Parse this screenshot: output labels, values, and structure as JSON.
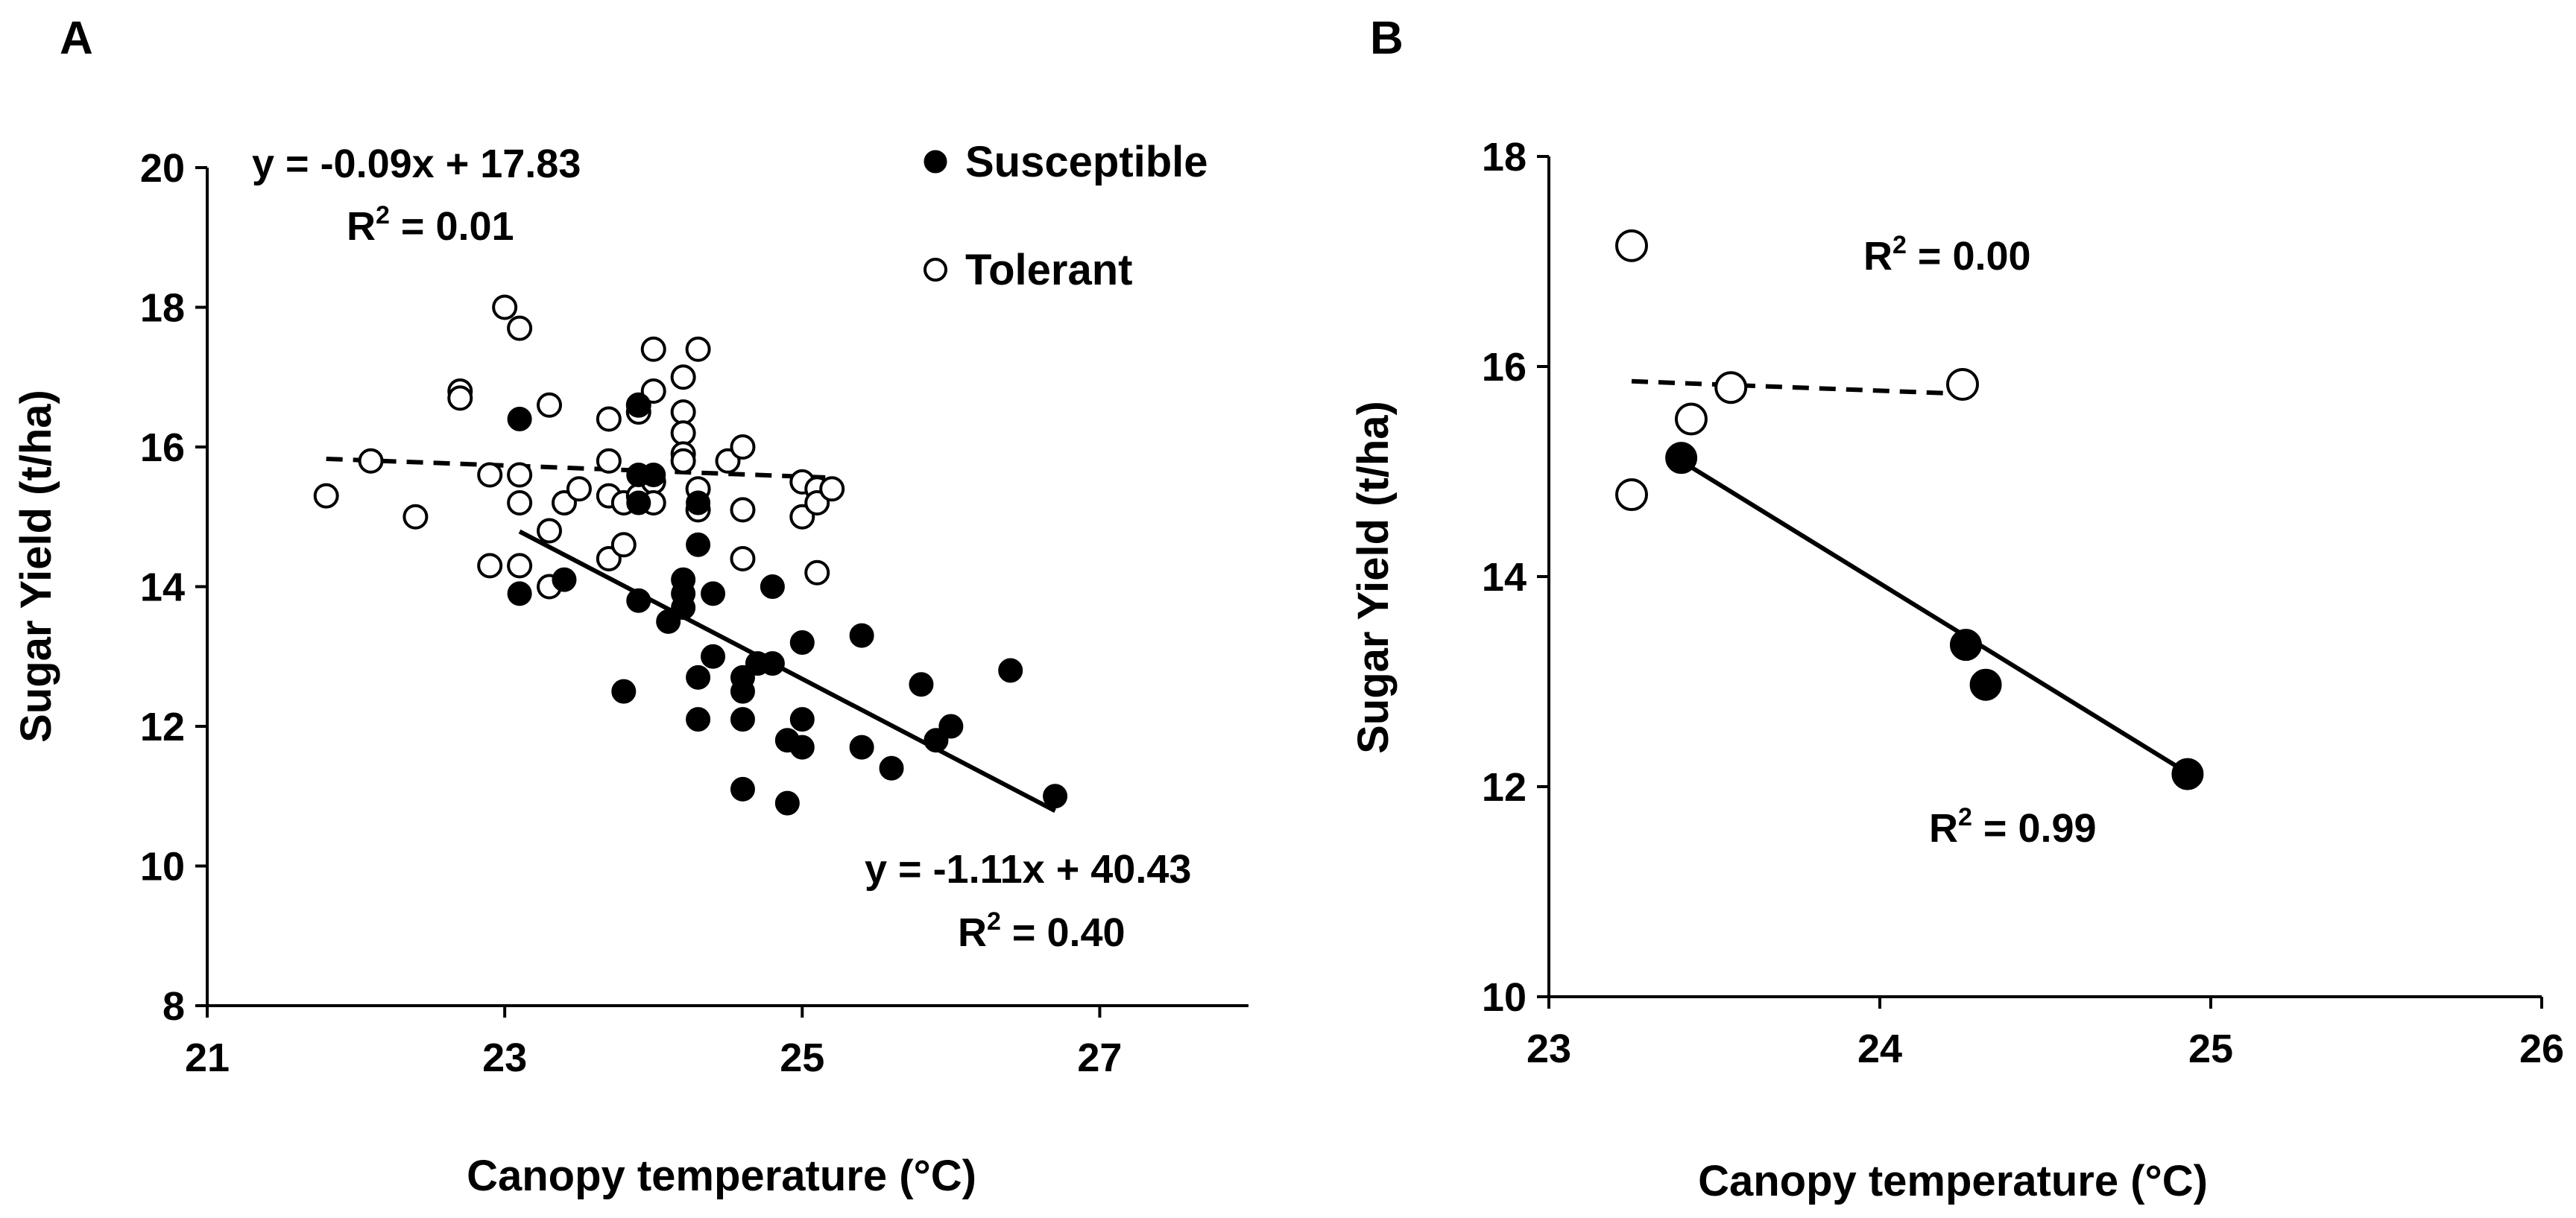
{
  "chart_data": [
    {
      "panel": "A",
      "type": "scatter",
      "xlabel": "Canopy temperature (°C)",
      "ylabel": "Sugar Yield (t/ha)",
      "xlim": [
        21,
        28
      ],
      "ylim": [
        8,
        20
      ],
      "xticks": [
        21,
        23,
        25,
        27
      ],
      "yticks": [
        8,
        10,
        12,
        14,
        16,
        18,
        20
      ],
      "legend": {
        "position": "top-right",
        "entries": [
          "Susceptible",
          "Tolerant"
        ]
      },
      "series": [
        {
          "name": "Tolerant",
          "marker": "open-circle",
          "points": [
            [
              21.8,
              15.3
            ],
            [
              22.1,
              15.8
            ],
            [
              22.4,
              15.0
            ],
            [
              22.7,
              16.8
            ],
            [
              22.7,
              16.7
            ],
            [
              22.9,
              15.6
            ],
            [
              22.9,
              14.3
            ],
            [
              23.0,
              18.0
            ],
            [
              23.1,
              17.7
            ],
            [
              23.1,
              15.6
            ],
            [
              23.1,
              15.2
            ],
            [
              23.1,
              14.3
            ],
            [
              23.3,
              16.6
            ],
            [
              23.3,
              14.8
            ],
            [
              23.3,
              14.0
            ],
            [
              23.4,
              15.2
            ],
            [
              23.5,
              15.4
            ],
            [
              23.7,
              16.4
            ],
            [
              23.7,
              15.8
            ],
            [
              23.7,
              15.3
            ],
            [
              23.7,
              14.4
            ],
            [
              23.8,
              15.2
            ],
            [
              23.8,
              14.6
            ],
            [
              23.9,
              16.5
            ],
            [
              23.9,
              16.6
            ],
            [
              23.9,
              15.3
            ],
            [
              24.0,
              17.4
            ],
            [
              24.0,
              16.8
            ],
            [
              24.0,
              15.5
            ],
            [
              24.0,
              15.2
            ],
            [
              24.2,
              17.0
            ],
            [
              24.2,
              16.5
            ],
            [
              24.2,
              16.2
            ],
            [
              24.2,
              15.9
            ],
            [
              24.2,
              15.8
            ],
            [
              24.3,
              17.4
            ],
            [
              24.3,
              15.4
            ],
            [
              24.3,
              15.1
            ],
            [
              24.5,
              15.8
            ],
            [
              24.6,
              16.0
            ],
            [
              24.6,
              15.1
            ],
            [
              24.6,
              14.4
            ],
            [
              25.0,
              15.5
            ],
            [
              25.0,
              15.0
            ],
            [
              25.1,
              15.4
            ],
            [
              25.1,
              15.2
            ],
            [
              25.1,
              14.2
            ],
            [
              25.2,
              15.4
            ]
          ]
        },
        {
          "name": "Susceptible",
          "marker": "filled-circle",
          "points": [
            [
              23.1,
              16.4
            ],
            [
              23.1,
              13.9
            ],
            [
              23.4,
              14.1
            ],
            [
              23.8,
              12.5
            ],
            [
              23.9,
              16.6
            ],
            [
              23.9,
              15.6
            ],
            [
              23.9,
              15.2
            ],
            [
              23.9,
              13.8
            ],
            [
              24.0,
              15.6
            ],
            [
              24.1,
              13.5
            ],
            [
              24.2,
              14.1
            ],
            [
              24.2,
              13.9
            ],
            [
              24.2,
              13.7
            ],
            [
              24.3,
              15.2
            ],
            [
              24.3,
              14.6
            ],
            [
              24.3,
              12.7
            ],
            [
              24.3,
              12.1
            ],
            [
              24.4,
              13.9
            ],
            [
              24.4,
              13.0
            ],
            [
              24.6,
              12.7
            ],
            [
              24.6,
              12.5
            ],
            [
              24.6,
              12.1
            ],
            [
              24.6,
              11.1
            ],
            [
              24.7,
              12.9
            ],
            [
              24.8,
              14.0
            ],
            [
              24.8,
              12.9
            ],
            [
              24.9,
              11.8
            ],
            [
              24.9,
              10.9
            ],
            [
              25.0,
              13.2
            ],
            [
              25.0,
              12.1
            ],
            [
              25.0,
              11.7
            ],
            [
              25.4,
              13.3
            ],
            [
              25.4,
              11.7
            ],
            [
              25.6,
              11.4
            ],
            [
              25.8,
              12.6
            ],
            [
              25.9,
              11.8
            ],
            [
              26.0,
              12.0
            ],
            [
              26.4,
              12.8
            ],
            [
              26.7,
              11.0
            ]
          ]
        }
      ],
      "trendlines": [
        {
          "series": "Tolerant",
          "style": "dashed",
          "x": [
            21.8,
            25.2
          ],
          "y": [
            15.83,
            15.56
          ],
          "equation": "y = -0.09x + 17.83",
          "r2_prefix": "R",
          "r2_sup": "2",
          "r2_value": " = 0.01"
        },
        {
          "series": "Susceptible",
          "style": "solid",
          "x": [
            23.1,
            26.7
          ],
          "y": [
            14.79,
            10.79
          ],
          "equation": "y = -1.11x + 40.43",
          "r2_prefix": "R",
          "r2_sup": "2",
          "r2_value": " = 0.40"
        }
      ]
    },
    {
      "panel": "B",
      "type": "scatter",
      "xlabel": "Canopy temperature (°C)",
      "ylabel": "Sugar Yield (t/ha)",
      "xlim": [
        23,
        26
      ],
      "ylim": [
        10,
        18
      ],
      "xticks": [
        23,
        24,
        25,
        26
      ],
      "yticks": [
        10,
        12,
        14,
        16,
        18
      ],
      "series": [
        {
          "name": "Tolerant",
          "marker": "open-circle",
          "points": [
            [
              23.25,
              17.15
            ],
            [
              23.25,
              14.78
            ],
            [
              23.43,
              15.5
            ],
            [
              23.55,
              15.8
            ],
            [
              24.25,
              15.83
            ]
          ]
        },
        {
          "name": "Susceptible",
          "marker": "filled-circle",
          "points": [
            [
              23.4,
              15.13
            ],
            [
              24.26,
              13.35
            ],
            [
              24.32,
              12.97
            ],
            [
              24.93,
              12.12
            ]
          ]
        }
      ],
      "trendlines": [
        {
          "series": "Tolerant",
          "style": "dashed",
          "x": [
            23.25,
            24.25
          ],
          "y": [
            15.86,
            15.74
          ],
          "r2_prefix": "R",
          "r2_sup": "2",
          "r2_value": " = 0.00"
        },
        {
          "series": "Susceptible",
          "style": "solid",
          "x": [
            23.4,
            24.93
          ],
          "y": [
            15.1,
            12.13
          ],
          "r2_prefix": "R",
          "r2_sup": "2",
          "r2_value": " = 0.99"
        }
      ]
    }
  ]
}
